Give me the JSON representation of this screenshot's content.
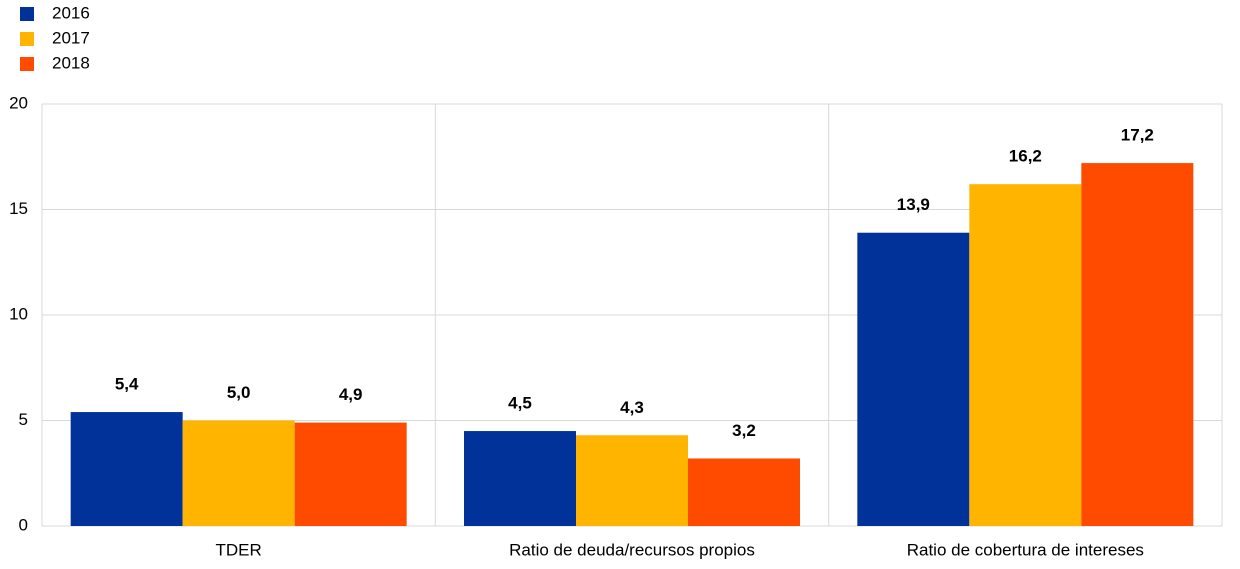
{
  "chart_data": {
    "type": "bar",
    "categories": [
      "TDER",
      "Ratio de deuda/recursos propios",
      "Ratio de cobertura de intereses"
    ],
    "series": [
      {
        "name": "2016",
        "color": "#003299",
        "values": [
          5.4,
          4.5,
          13.9
        ],
        "value_labels": [
          "5,4",
          "4,5",
          "13,9"
        ]
      },
      {
        "name": "2017",
        "color": "#ffb400",
        "values": [
          5.0,
          4.3,
          16.2
        ],
        "value_labels": [
          "5,0",
          "4,3",
          "16,2"
        ]
      },
      {
        "name": "2018",
        "color": "#ff4b00",
        "values": [
          4.9,
          3.2,
          17.2
        ],
        "value_labels": [
          "4,9",
          "3,2",
          "17,2"
        ]
      }
    ],
    "ylim": [
      0,
      20
    ],
    "yticks": [
      0,
      5,
      10,
      15,
      20
    ],
    "grid": true,
    "legend": "top-left"
  }
}
